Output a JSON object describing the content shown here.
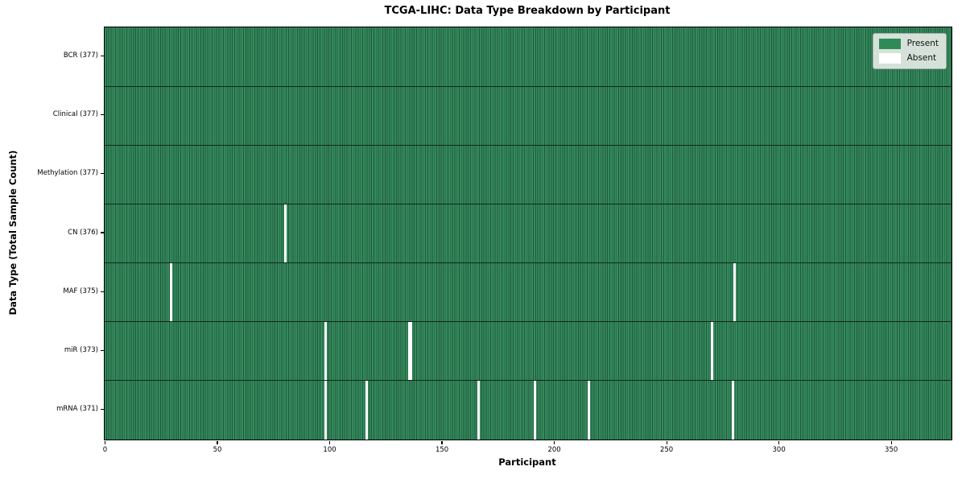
{
  "chart_data": {
    "type": "heatmap",
    "title": "TCGA-LIHC: Data Type Breakdown by Participant",
    "xlabel": "Participant",
    "ylabel": "Data Type (Total Sample Count)",
    "xlim": [
      0,
      377
    ],
    "n_participants": 377,
    "x_ticks": [
      0,
      50,
      100,
      150,
      200,
      250,
      300,
      350
    ],
    "grid": false,
    "legend_position": "upper-right",
    "legend": [
      {
        "label": "Present",
        "color": "#2e8b57"
      },
      {
        "label": "Absent",
        "color": "#ffffff"
      }
    ],
    "colors": {
      "cell_fill": "#35895d",
      "cell_edge": "#1f5a3b",
      "row_divider": "#10281a",
      "absent": "#ffffff",
      "legend_bg": "#e8ede8"
    },
    "rows": [
      {
        "label": "BCR (377)",
        "total": 377,
        "absent_participants": []
      },
      {
        "label": "Clinical (377)",
        "total": 377,
        "absent_participants": []
      },
      {
        "label": "Methylation (377)",
        "total": 377,
        "absent_participants": []
      },
      {
        "label": "CN (376)",
        "total": 376,
        "absent_participants": [
          80
        ]
      },
      {
        "label": "MAF (375)",
        "total": 375,
        "absent_participants": [
          29,
          280
        ]
      },
      {
        "label": "miR (373)",
        "total": 373,
        "absent_participants": [
          98,
          135,
          136,
          270
        ]
      },
      {
        "label": "mRNA (371)",
        "total": 371,
        "absent_participants": [
          98,
          116,
          166,
          191,
          215,
          279
        ]
      }
    ]
  }
}
